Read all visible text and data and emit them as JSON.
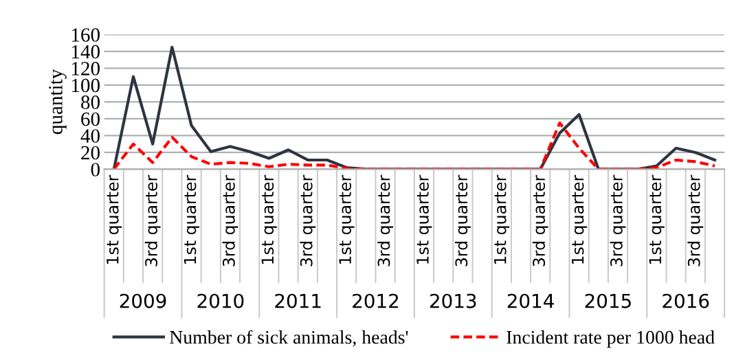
{
  "chart_data": {
    "type": "line",
    "ylabel": "quantity",
    "categories": [
      "1st quarter",
      null,
      "3rd quarter",
      null,
      "1st quarter",
      null,
      "3rd quarter",
      null,
      "1st quarter",
      null,
      "3rd quarter",
      null,
      "1st quarter",
      null,
      "3rd quarter",
      null,
      "1st quarter",
      null,
      "3rd quarter",
      null,
      "1st quarter",
      null,
      "3rd quarter",
      null,
      "1st quarter",
      null,
      "3rd quarter",
      null,
      "1st quarter",
      null,
      "3rd quarter",
      null
    ],
    "annotations": [
      "2009",
      "2010",
      "2011",
      "2012",
      "2013",
      "2014",
      "2015",
      "2016"
    ],
    "series": [
      {
        "name": "Number of sick animals, heads'",
        "color": "#2e3440",
        "line_style": "solid",
        "values": [
          0,
          110,
          30,
          145,
          52,
          21,
          27,
          21,
          13,
          23,
          11,
          11,
          2,
          0,
          0,
          0,
          0,
          0,
          0,
          0,
          0,
          0,
          0,
          43,
          65,
          0,
          0,
          0,
          4,
          25,
          20,
          11
        ]
      },
      {
        "name": "Incident rate per 1000 head",
        "color": "#ff0000",
        "line_style": "dashed",
        "values": [
          0,
          30,
          8,
          38,
          15,
          6,
          8,
          7,
          3,
          6,
          5,
          5,
          1,
          0,
          0,
          0,
          0,
          0,
          0,
          0,
          0,
          0,
          0,
          55,
          25,
          0,
          0,
          0,
          2,
          11,
          9,
          4
        ]
      }
    ],
    "ylim": [
      0,
      160
    ],
    "yticks": [
      0,
      20,
      40,
      60,
      80,
      100,
      120,
      140,
      160
    ],
    "grid": "y",
    "legend": "bottom"
  }
}
